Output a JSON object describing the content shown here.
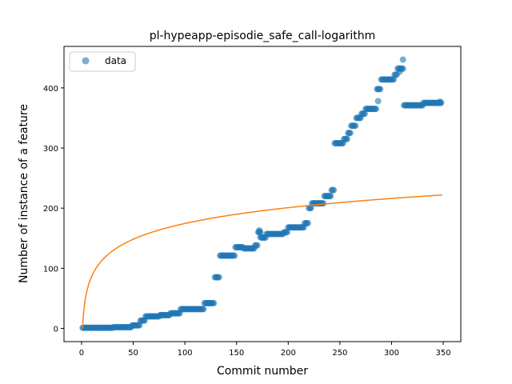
{
  "chart_data": {
    "type": "scatter",
    "title": "pl-hypeapp-episodie_safe_call-logarithm",
    "xlabel": "Commit number",
    "ylabel": "Number of instance of a feature",
    "xlim": [
      -17,
      367
    ],
    "ylim": [
      -22,
      469
    ],
    "xticks": [
      0,
      50,
      100,
      150,
      200,
      250,
      300,
      350
    ],
    "yticks": [
      0,
      100,
      200,
      300,
      400
    ],
    "grid": false,
    "legend_position": "top-left",
    "colors": {
      "data": "#1f77b4",
      "fit": "#ff7f0e"
    },
    "series": [
      {
        "name": "data",
        "kind": "scatter",
        "segments": [
          {
            "x_start": 1,
            "x_end": 30,
            "y": 1
          },
          {
            "x_start": 31,
            "x_end": 48,
            "y": 2
          },
          {
            "x_start": 49,
            "x_end": 56,
            "y": 5
          },
          {
            "x_start": 57,
            "x_end": 61,
            "y": 13
          },
          {
            "x_start": 62,
            "x_end": 75,
            "y": 20
          },
          {
            "x_start": 76,
            "x_end": 85,
            "y": 22
          },
          {
            "x_start": 86,
            "x_end": 95,
            "y": 25
          },
          {
            "x_start": 96,
            "x_end": 118,
            "y": 32
          },
          {
            "x_start": 119,
            "x_end": 128,
            "y": 42
          },
          {
            "x_start": 129,
            "x_end": 133,
            "y": 85
          },
          {
            "x_start": 134,
            "x_end": 148,
            "y": 121
          },
          {
            "x_start": 149,
            "x_end": 156,
            "y": 135
          },
          {
            "x_start": 157,
            "x_end": 167,
            "y": 133
          },
          {
            "x_start": 168,
            "x_end": 170,
            "y": 138
          },
          {
            "x_start": 171,
            "x_end": 173,
            "y": 160
          },
          {
            "x_start": 174,
            "x_end": 178,
            "y": 151
          },
          {
            "x_start": 179,
            "x_end": 195,
            "y": 157
          },
          {
            "x_start": 196,
            "x_end": 199,
            "y": 160
          },
          {
            "x_start": 200,
            "x_end": 215,
            "y": 168
          },
          {
            "x_start": 216,
            "x_end": 219,
            "y": 175
          },
          {
            "x_start": 220,
            "x_end": 222,
            "y": 200
          },
          {
            "x_start": 223,
            "x_end": 234,
            "y": 208
          },
          {
            "x_start": 235,
            "x_end": 241,
            "y": 220
          },
          {
            "x_start": 242,
            "x_end": 244,
            "y": 230
          },
          {
            "x_start": 245,
            "x_end": 253,
            "y": 308
          },
          {
            "x_start": 254,
            "x_end": 257,
            "y": 315
          },
          {
            "x_start": 258,
            "x_end": 260,
            "y": 325
          },
          {
            "x_start": 261,
            "x_end": 265,
            "y": 337
          },
          {
            "x_start": 266,
            "x_end": 270,
            "y": 350
          },
          {
            "x_start": 271,
            "x_end": 274,
            "y": 357
          },
          {
            "x_start": 275,
            "x_end": 285,
            "y": 365
          },
          {
            "x_start": 286,
            "x_end": 289,
            "y": 398
          },
          {
            "x_start": 290,
            "x_end": 302,
            "y": 414
          },
          {
            "x_start": 303,
            "x_end": 305,
            "y": 422
          },
          {
            "x_start": 306,
            "x_end": 311,
            "y": 432
          },
          {
            "x_start": 312,
            "x_end": 330,
            "y": 371
          },
          {
            "x_start": 331,
            "x_end": 348,
            "y": 375
          }
        ],
        "points": [
          {
            "x": 172,
            "y": 163
          },
          {
            "x": 173,
            "y": 152
          },
          {
            "x": 287,
            "y": 378
          },
          {
            "x": 308,
            "y": 427
          },
          {
            "x": 311,
            "y": 447
          },
          {
            "x": 347,
            "y": 377
          }
        ]
      },
      {
        "name": "",
        "kind": "line",
        "equation": "y = 37.89 * ln(x)",
        "x_range": [
          1,
          349
        ]
      }
    ]
  }
}
